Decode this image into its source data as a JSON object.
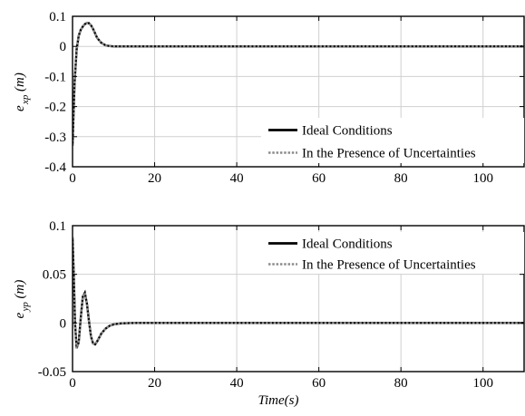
{
  "chart_data": [
    {
      "type": "line",
      "ylabel_main": "e",
      "ylabel_sub": "xp",
      "ylabel_unit": "(m)",
      "xlabel": "",
      "xlim": [
        0,
        110
      ],
      "ylim": [
        -0.4,
        0.1
      ],
      "xticks": [
        0,
        20,
        40,
        60,
        80,
        100
      ],
      "xtick_labels": [
        "0",
        "20",
        "40",
        "60",
        "80",
        "100"
      ],
      "yticks": [
        -0.4,
        -0.3,
        -0.2,
        -0.1,
        0,
        0.1
      ],
      "ytick_labels": [
        "-0.4",
        "-0.3",
        "-0.2",
        "-0.1",
        "0",
        "0.1"
      ],
      "grid": true,
      "legend_position": "bottom-right",
      "series": [
        {
          "name": "Ideal Conditions",
          "color": "#000000",
          "style": "solid",
          "x": [
            0,
            0.5,
            1,
            1.5,
            2,
            2.5,
            3,
            3.5,
            4,
            4.5,
            5,
            5.5,
            6,
            7,
            8,
            9,
            10,
            12,
            15,
            20,
            30,
            50,
            80,
            110
          ],
          "y": [
            -0.33,
            -0.12,
            -0.01,
            0.035,
            0.055,
            0.066,
            0.074,
            0.078,
            0.077,
            0.07,
            0.058,
            0.043,
            0.028,
            0.012,
            0.004,
            0.001,
            0.0,
            0.0,
            0.0,
            0.0,
            0.0,
            0.0,
            0.0,
            0.0
          ]
        },
        {
          "name": "In the Presence of Uncertainties",
          "color": "#8c8c8c",
          "style": "dotted",
          "x": [
            0,
            0.5,
            1,
            1.5,
            2,
            2.5,
            3,
            3.5,
            4,
            4.5,
            5,
            5.5,
            6,
            7,
            8,
            9,
            10,
            12,
            15,
            20,
            30,
            50,
            80,
            110
          ],
          "y": [
            -0.33,
            -0.12,
            -0.01,
            0.035,
            0.055,
            0.066,
            0.074,
            0.078,
            0.077,
            0.07,
            0.058,
            0.043,
            0.028,
            0.012,
            0.004,
            0.001,
            0.0,
            0.0,
            0.0,
            0.0,
            0.0,
            0.0,
            0.0,
            0.0
          ]
        }
      ]
    },
    {
      "type": "line",
      "ylabel_main": "e",
      "ylabel_sub": "yp",
      "ylabel_unit": "(m)",
      "xlabel": "Time(s)",
      "xlim": [
        0,
        110
      ],
      "ylim": [
        -0.05,
        0.1
      ],
      "xticks": [
        0,
        20,
        40,
        60,
        80,
        100
      ],
      "xtick_labels": [
        "0",
        "20",
        "40",
        "60",
        "80",
        "100"
      ],
      "yticks": [
        -0.05,
        0,
        0.05,
        0.1
      ],
      "ytick_labels": [
        "-0.05",
        "0",
        "0.05",
        "0.1"
      ],
      "grid": true,
      "legend_position": "top-right",
      "series": [
        {
          "name": "Ideal Conditions",
          "color": "#000000",
          "style": "solid",
          "x": [
            0,
            0.3,
            0.6,
            1.0,
            1.5,
            2.0,
            2.5,
            3.0,
            3.5,
            4.0,
            4.5,
            5.0,
            5.5,
            6.0,
            6.5,
            7.0,
            8.0,
            9.0,
            10.0,
            11.0,
            12.0,
            14.0,
            16.0,
            20.0,
            30.0,
            60.0,
            110.0
          ],
          "y": [
            0.088,
            0.05,
            0.0,
            -0.026,
            -0.02,
            0.005,
            0.027,
            0.031,
            0.02,
            0.002,
            -0.014,
            -0.021,
            -0.022,
            -0.019,
            -0.015,
            -0.011,
            -0.006,
            -0.003,
            -0.0015,
            -0.0008,
            -0.0004,
            -0.0001,
            0.0,
            0.0,
            0.0,
            0.0,
            0.0
          ]
        },
        {
          "name": "In the Presence of Uncertainties",
          "color": "#8c8c8c",
          "style": "dotted",
          "x": [
            0,
            0.3,
            0.6,
            1.0,
            1.5,
            2.0,
            2.5,
            3.0,
            3.5,
            4.0,
            4.5,
            5.0,
            5.5,
            6.0,
            6.5,
            7.0,
            8.0,
            9.0,
            10.0,
            11.0,
            12.0,
            14.0,
            16.0,
            20.0,
            30.0,
            60.0,
            110.0
          ],
          "y": [
            0.088,
            0.05,
            0.0,
            -0.026,
            -0.02,
            0.005,
            0.027,
            0.031,
            0.02,
            0.002,
            -0.014,
            -0.021,
            -0.022,
            -0.019,
            -0.015,
            -0.011,
            -0.006,
            -0.003,
            -0.0015,
            -0.0008,
            -0.0004,
            -0.0001,
            0.0,
            0.0,
            0.0,
            0.0,
            0.0
          ]
        }
      ]
    }
  ]
}
